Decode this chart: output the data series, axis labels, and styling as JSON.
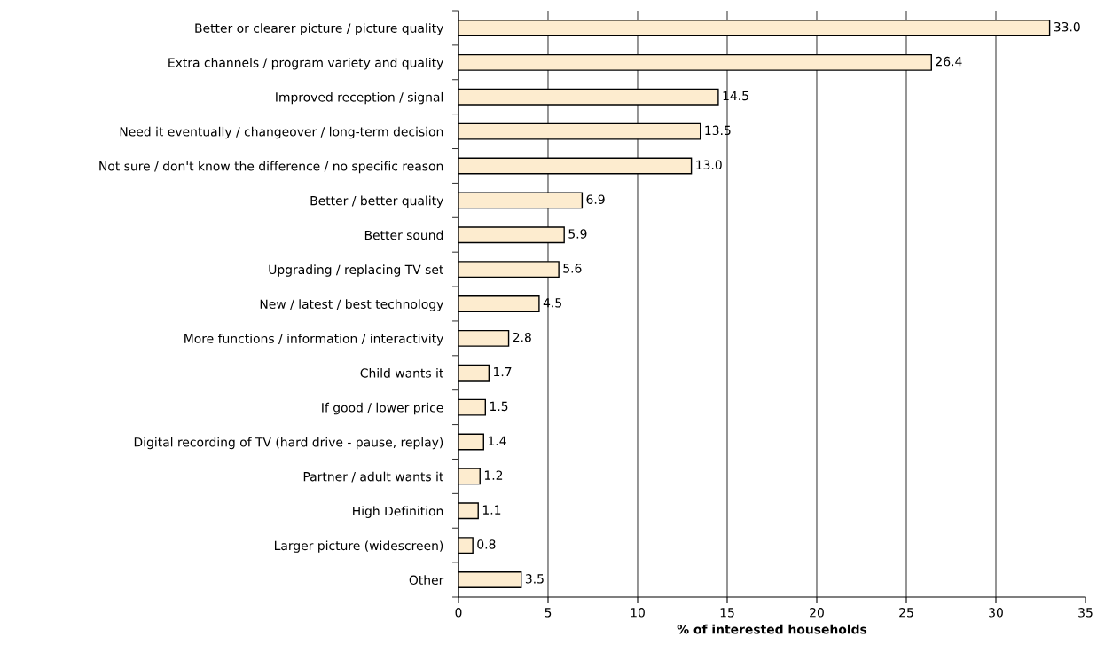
{
  "chart_data": {
    "type": "bar",
    "orientation": "horizontal",
    "xlabel": "% of interested households",
    "categories": [
      "Better or clearer picture / picture quality",
      "Extra channels / program variety and quality",
      "Improved reception / signal",
      "Need it eventually / changeover / long-term decision",
      "Not sure / don't know the difference / no specific reason",
      "Better / better quality",
      "Better sound",
      "Upgrading / replacing TV set",
      "New / latest / best technology",
      "More functions / information / interactivity",
      "Child wants it",
      "If good / lower price",
      "Digital recording of TV (hard drive - pause, replay)",
      "Partner / adult wants it",
      "High Definition",
      "Larger picture (widescreen)",
      "Other"
    ],
    "values": [
      33.0,
      26.4,
      14.5,
      13.5,
      13.0,
      6.9,
      5.9,
      5.6,
      4.5,
      2.8,
      1.7,
      1.5,
      1.4,
      1.2,
      1.1,
      0.8,
      3.5
    ],
    "color": "#fdeccf",
    "xlim": [
      0,
      35
    ],
    "xticks": [
      0,
      5,
      10,
      15,
      20,
      25,
      30,
      35
    ],
    "grid": "x",
    "legend": false,
    "value_labels": [
      "33.0",
      "26.4",
      "14.5",
      "13.5",
      "13.0",
      "6.9",
      "5.9",
      "5.6",
      "4.5",
      "2.8",
      "1.7",
      "1.5",
      "1.4",
      "1.2",
      "1.1",
      "0.8",
      "3.5"
    ]
  }
}
